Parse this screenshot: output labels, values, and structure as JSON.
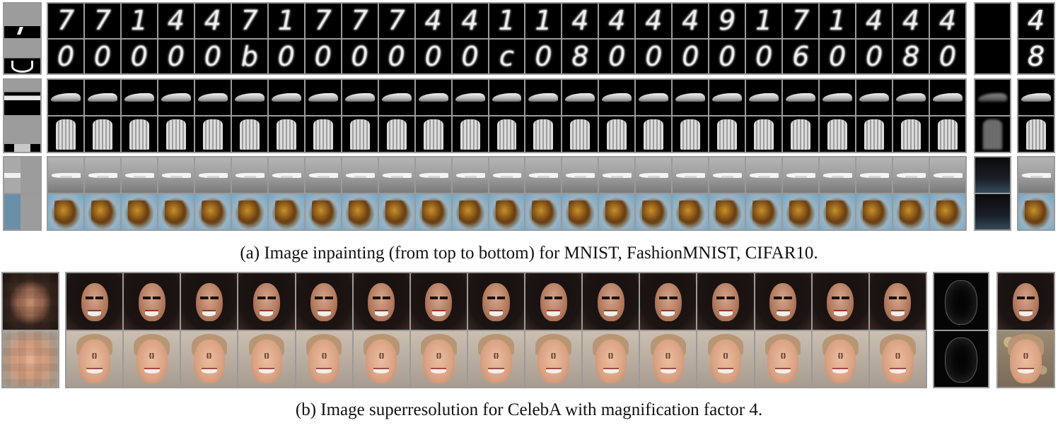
{
  "captions": {
    "a": "(a) Image inpainting (from top to bottom) for MNIST, FashionMNIST, CIFAR10.",
    "b": "(b) Image superresolution for CelebA with magnification factor 4."
  },
  "mnist": {
    "row1_digits": [
      "7",
      "7",
      "1",
      "4",
      "4",
      "7",
      "1",
      "7",
      "7",
      "7",
      "4",
      "4",
      "1",
      "1",
      "4",
      "4",
      "4",
      "4",
      "9",
      "1",
      "7",
      "1",
      "4",
      "4",
      "4"
    ],
    "row2_digits": [
      "0",
      "0",
      "0",
      "0",
      "0",
      "b",
      "0",
      "0",
      "0",
      "0",
      "0",
      "0",
      "c",
      "0",
      "8",
      "0",
      "0",
      "0",
      "0",
      "0",
      "6",
      "0",
      "0",
      "8",
      "0"
    ],
    "variance_row1": "",
    "variance_row2": "",
    "truth_row1": "4",
    "truth_row2": "8"
  },
  "fashion": {
    "samples": 25
  },
  "cifar": {
    "samples": 25
  },
  "celeba": {
    "samples": 15
  }
}
